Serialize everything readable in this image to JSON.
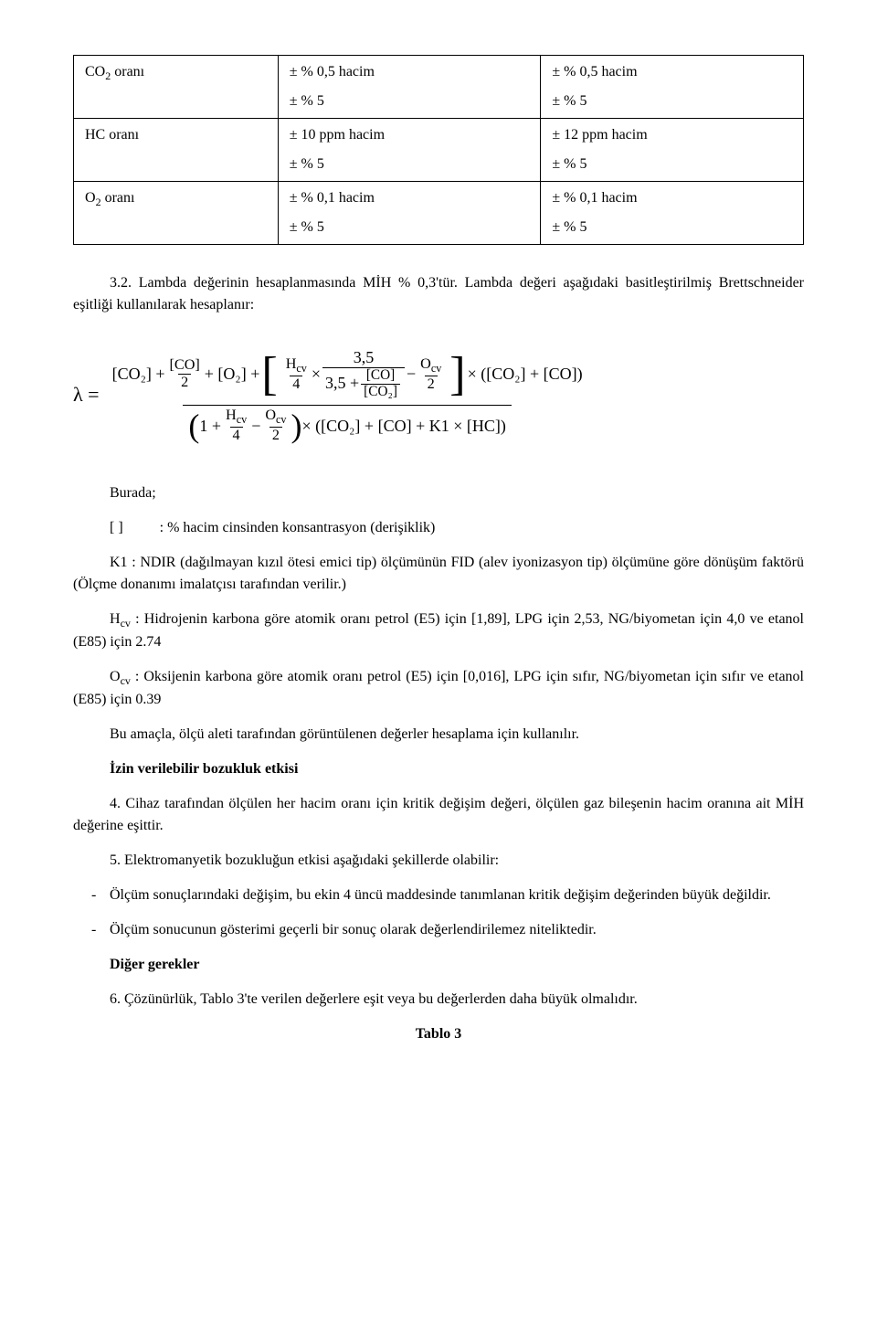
{
  "table": {
    "rows": [
      {
        "label_html": "CO<sub>2</sub> oranı",
        "c1": [
          "± % 0,5 hacim",
          "± % 5"
        ],
        "c2": [
          "± % 0,5 hacim",
          "± % 5"
        ]
      },
      {
        "label_html": "HC oranı",
        "c1": [
          "± 10 ppm hacim",
          "± % 5"
        ],
        "c2": [
          "± 12 ppm hacim",
          "± % 5"
        ]
      },
      {
        "label_html": "O<sub>2</sub> oranı",
        "c1": [
          "± % 0,1 hacim",
          "± % 5"
        ],
        "c2": [
          "± % 0,1 hacim",
          "± % 5"
        ]
      }
    ]
  },
  "para_lambda_intro": "3.2. Lambda değerinin hesaplanmasında MİH % 0,3'tür. Lambda değeri aşağıdaki basitleştirilmiş Brettschneider eşitliği kullanılarak hesaplanır:",
  "formula": {
    "lambda": "λ =",
    "num_lead": "[CO₂] + ",
    "frac_co_2": {
      "n": "[CO]",
      "d": "2"
    },
    "plus_o2": " + [O₂] + ",
    "hcv4": {
      "n": "H_cv",
      "d": "4"
    },
    "times1": " × ",
    "frac_35": {
      "n": "3,5",
      "d_lead": "3,5 + ",
      "d_frac": {
        "n": "[CO]",
        "d": "[CO₂]"
      }
    },
    "minus": " − ",
    "ocv2": {
      "n": "O_cv",
      "d": "2"
    },
    "tail_mult": " × ([CO₂] + [CO])",
    "den_lead": "1 + ",
    "den_hcv4": {
      "n": "H_cv",
      "d": "4"
    },
    "den_minus": " − ",
    "den_ocv2": {
      "n": "O_cv",
      "d": "2"
    },
    "den_tail": " × ([CO₂] + [CO] + K1 × [HC])"
  },
  "burada": "Burada;",
  "defs": {
    "brackets": "[ ]          : % hacim cinsinden konsantrasyon (derişiklik)",
    "k1": "K1     : NDIR (dağılmayan kızıl ötesi emici tip) ölçümünün FID (alev iyonizasyon tip) ölçümüne göre dönüşüm faktörü (Ölçme donanımı imalatçısı tarafından verilir.)",
    "hcv": "H_cv     : Hidrojenin karbona göre atomik oranı petrol (E5) için [1,89], LPG için 2,53, NG/biyometan için 4,0 ve etanol (E85) için 2.74",
    "ocv": "O_cv     : Oksijenin karbona göre atomik oranı petrol (E5) için [0,016], LPG için sıfır, NG/biyometan için sıfır ve etanol (E85) için 0.39"
  },
  "para_amac": "Bu amaçla, ölçü aleti tarafından görüntülenen değerler hesaplama için kullanılır.",
  "h_izin": "İzin verilebilir bozukluk etkisi",
  "para4": "4. Cihaz tarafından ölçülen her hacim oranı için kritik değişim değeri, ölçülen gaz bileşenin hacim oranına ait MİH değerine eşittir.",
  "para5": "5. Elektromanyetik bozukluğun etkisi aşağıdaki şekillerde olabilir:",
  "bullets": [
    "Ölçüm sonuçlarındaki değişim, bu ekin 4 üncü maddesinde tanımlanan kritik değişim değerinden büyük değildir.",
    "Ölçüm sonucunun gösterimi geçerli bir sonuç olarak değerlendirilemez niteliktedir."
  ],
  "h_diger": "Diğer gerekler",
  "para6": "6. Çözünürlük, Tablo 3'te verilen değerlere eşit veya bu değerlerden daha büyük olmalıdır.",
  "tablo3": "Tablo 3"
}
